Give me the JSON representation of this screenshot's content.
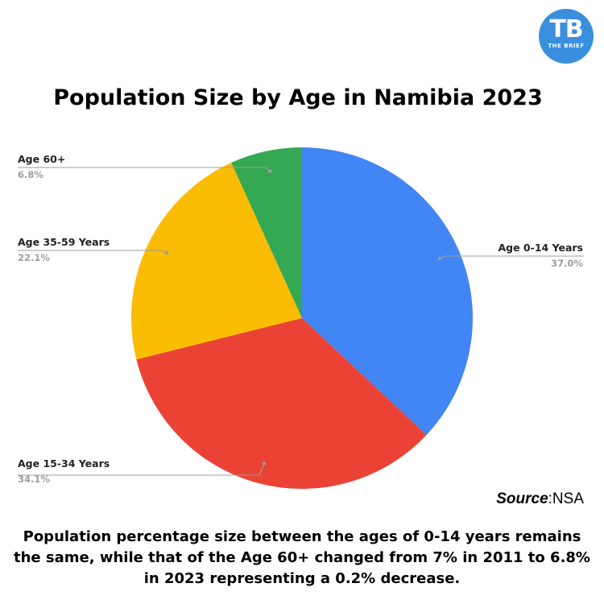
{
  "brand": {
    "mark": "TB",
    "tagline": "THE BRIEF",
    "color": "#3a8fde"
  },
  "source": {
    "label": "Source",
    "value": ":NSA"
  },
  "caption": "Population percentage size between the ages of 0-14 years remains the same, while that of the Age 60+ changed from 7% in 2011 to 6.8% in 2023 representing a 0.2% decrease.",
  "chart_data": {
    "type": "pie",
    "title": "Population Size by Age in Namibia 2023",
    "start_angle_deg": 0,
    "direction": "clockwise",
    "legend": "labels with leader lines",
    "slices": [
      {
        "label": "Age 0-14 Years",
        "value": 37.0,
        "value_label": "37.0%",
        "color": "#4285f4"
      },
      {
        "label": "Age 15-34 Years",
        "value": 34.1,
        "value_label": "34.1%",
        "color": "#ea4335"
      },
      {
        "label": "Age 35-59 Years",
        "value": 22.1,
        "value_label": "22.1%",
        "color": "#fbbc04"
      },
      {
        "label": "Age 60+",
        "value": 6.8,
        "value_label": "6.8%",
        "color": "#34a853"
      }
    ]
  }
}
